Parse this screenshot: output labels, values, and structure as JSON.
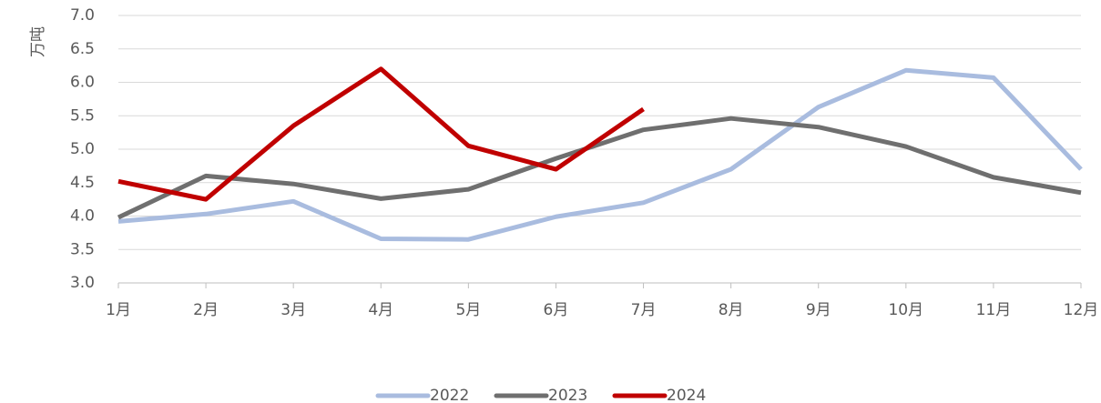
{
  "chart_data": {
    "type": "line",
    "y_label": "万吨",
    "categories": [
      "1月",
      "2月",
      "3月",
      "4月",
      "5月",
      "6月",
      "7月",
      "8月",
      "9月",
      "10月",
      "11月",
      "12月"
    ],
    "series": [
      {
        "name": "2022",
        "color": "#a9bcdf",
        "values": [
          3.92,
          4.03,
          4.22,
          3.66,
          3.65,
          3.99,
          4.2,
          4.7,
          5.63,
          6.18,
          6.07,
          4.7
        ]
      },
      {
        "name": "2023",
        "color": "#6f6f6f",
        "values": [
          3.98,
          4.6,
          4.48,
          4.26,
          4.4,
          4.86,
          5.29,
          5.46,
          5.33,
          5.04,
          4.58,
          4.35
        ]
      },
      {
        "name": "2024",
        "color": "#c00000",
        "values": [
          4.52,
          4.25,
          5.35,
          6.2,
          5.05,
          4.7,
          5.6,
          null,
          null,
          null,
          null,
          null
        ]
      }
    ],
    "ylim": [
      3,
      7
    ],
    "yticks": [
      {
        "value": 3,
        "label": "3.0"
      },
      3.5,
      {
        "value": 4,
        "label": "4.0"
      },
      4.5,
      {
        "value": 5,
        "label": "5.0"
      },
      5.5,
      {
        "value": 6,
        "label": "6.0"
      },
      6.5,
      {
        "value": 7,
        "label": "7.0"
      }
    ],
    "grid": true,
    "legend": "bottom"
  }
}
